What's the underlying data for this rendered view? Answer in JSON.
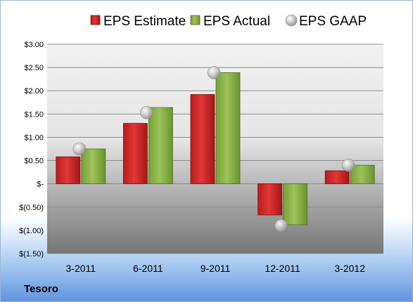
{
  "company": "Tesoro",
  "colors": {
    "estimate": "#d42a2a",
    "actual": "#8db548",
    "gaap": "#bdbdbd"
  },
  "chart_data": {
    "type": "bar",
    "title": "",
    "xlabel": "",
    "ylabel": "",
    "legend_position": "top",
    "grid": true,
    "categories": [
      "3-2011",
      "6-2011",
      "9-2011",
      "12-2011",
      "3-2012"
    ],
    "y_ticks": [
      "$3.00",
      "$2.50",
      "$2.00",
      "$1.50",
      "$1.00",
      "$0.50",
      "$-",
      "$(0.50)",
      "$(1.00)",
      "$(1.50)"
    ],
    "ylim": [
      -1.5,
      3.0
    ],
    "series": [
      {
        "name": "EPS Estimate",
        "kind": "bar",
        "values": [
          0.58,
          1.3,
          1.92,
          -0.67,
          0.28
        ]
      },
      {
        "name": "EPS Actual",
        "kind": "bar",
        "values": [
          0.75,
          1.64,
          2.39,
          -0.88,
          0.4
        ]
      },
      {
        "name": "EPS GAAP",
        "kind": "marker",
        "values": [
          0.75,
          1.53,
          2.39,
          -0.9,
          0.4
        ]
      }
    ]
  }
}
